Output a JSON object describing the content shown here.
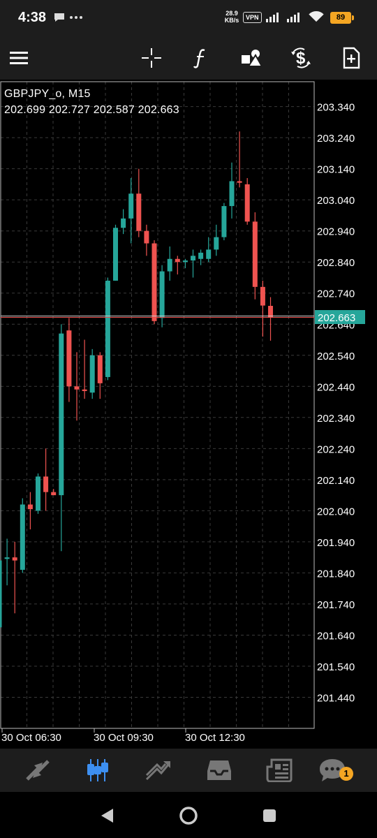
{
  "status_bar": {
    "time": "4:38",
    "left_icons": [
      "chat-bubble-icon",
      "more-dots-icon"
    ],
    "speed_value": "28.9",
    "speed_unit": "KB/s",
    "vpn": "VPN",
    "battery": "89"
  },
  "toolbar": {
    "items": [
      "menu-icon",
      "crosshair-icon",
      "function-icon",
      "objects-icon",
      "symbols-icon",
      "new-order-icon"
    ]
  },
  "chart": {
    "symbol_title": "GBPJPY_o, M15",
    "ohlc": "202.699 202.727 202.587 202.663",
    "current_price_label": "202.663",
    "colors": {
      "bull": "#26a69a",
      "bear": "#ef5350",
      "grid": "#3a3a3a",
      "border": "#bbbbbb",
      "price_tag": "#26a69a"
    }
  },
  "chart_data": {
    "type": "candlestick",
    "ylim": [
      201.34,
      203.42
    ],
    "y_ticks": [
      "203.340",
      "203.240",
      "203.140",
      "203.040",
      "202.940",
      "202.840",
      "202.740",
      "202.640",
      "202.540",
      "202.440",
      "202.340",
      "202.240",
      "202.140",
      "202.040",
      "201.940",
      "201.840",
      "201.740",
      "201.640",
      "201.540",
      "201.440"
    ],
    "x_labels": [
      "30 Oct 06:30",
      "30 Oct 09:30",
      "30 Oct 12:30"
    ],
    "current_price": 202.663,
    "candles": [
      {
        "o": 201.665,
        "h": 202.07,
        "l": 201.6,
        "c": 201.88
      },
      {
        "o": 201.885,
        "h": 201.95,
        "l": 201.8,
        "c": 201.89
      },
      {
        "o": 201.89,
        "h": 201.94,
        "l": 201.71,
        "c": 201.88
      },
      {
        "o": 201.85,
        "h": 202.08,
        "l": 201.84,
        "c": 202.06
      },
      {
        "o": 202.06,
        "h": 202.1,
        "l": 201.98,
        "c": 202.045
      },
      {
        "o": 202.04,
        "h": 202.16,
        "l": 202.03,
        "c": 202.15
      },
      {
        "o": 202.15,
        "h": 202.24,
        "l": 202.04,
        "c": 202.1
      },
      {
        "o": 202.1,
        "h": 202.11,
        "l": 202.09,
        "c": 202.09
      },
      {
        "o": 202.09,
        "h": 202.64,
        "l": 201.91,
        "c": 202.61
      },
      {
        "o": 202.62,
        "h": 202.66,
        "l": 202.39,
        "c": 202.44
      },
      {
        "o": 202.44,
        "h": 202.55,
        "l": 202.33,
        "c": 202.43
      },
      {
        "o": 202.43,
        "h": 202.59,
        "l": 202.4,
        "c": 202.425
      },
      {
        "o": 202.42,
        "h": 202.56,
        "l": 202.4,
        "c": 202.54
      },
      {
        "o": 202.54,
        "h": 202.55,
        "l": 202.4,
        "c": 202.45
      },
      {
        "o": 202.47,
        "h": 202.79,
        "l": 202.46,
        "c": 202.78
      },
      {
        "o": 202.78,
        "h": 202.96,
        "l": 202.78,
        "c": 202.95
      },
      {
        "o": 202.95,
        "h": 203.01,
        "l": 202.93,
        "c": 202.98
      },
      {
        "o": 202.98,
        "h": 203.11,
        "l": 202.9,
        "c": 203.06
      },
      {
        "o": 203.06,
        "h": 203.14,
        "l": 202.92,
        "c": 202.94
      },
      {
        "o": 202.94,
        "h": 202.96,
        "l": 202.86,
        "c": 202.9
      },
      {
        "o": 202.9,
        "h": 202.91,
        "l": 202.64,
        "c": 202.65
      },
      {
        "o": 202.66,
        "h": 202.83,
        "l": 202.63,
        "c": 202.81
      },
      {
        "o": 202.81,
        "h": 202.89,
        "l": 202.78,
        "c": 202.85
      },
      {
        "o": 202.85,
        "h": 202.86,
        "l": 202.8,
        "c": 202.84
      },
      {
        "o": 202.84,
        "h": 202.85,
        "l": 202.82,
        "c": 202.845
      },
      {
        "o": 202.845,
        "h": 202.88,
        "l": 202.79,
        "c": 202.86
      },
      {
        "o": 202.85,
        "h": 202.88,
        "l": 202.83,
        "c": 202.87
      },
      {
        "o": 202.85,
        "h": 202.92,
        "l": 202.84,
        "c": 202.88
      },
      {
        "o": 202.88,
        "h": 202.96,
        "l": 202.86,
        "c": 202.92
      },
      {
        "o": 202.92,
        "h": 203.03,
        "l": 202.91,
        "c": 203.02
      },
      {
        "o": 203.02,
        "h": 203.16,
        "l": 202.98,
        "c": 203.1
      },
      {
        "o": 203.1,
        "h": 203.26,
        "l": 203.08,
        "c": 203.095
      },
      {
        "o": 203.09,
        "h": 203.11,
        "l": 202.96,
        "c": 202.97
      },
      {
        "o": 202.97,
        "h": 203.0,
        "l": 202.72,
        "c": 202.76
      },
      {
        "o": 202.76,
        "h": 202.78,
        "l": 202.6,
        "c": 202.7
      },
      {
        "o": 202.699,
        "h": 202.727,
        "l": 202.587,
        "c": 202.663
      }
    ]
  },
  "bottom_nav": {
    "items": [
      "quotes-icon",
      "chart-icon",
      "trade-icon",
      "history-icon",
      "news-icon",
      "messages-icon"
    ],
    "active": "chart-icon",
    "badge": "1"
  },
  "android_nav": [
    "back-icon",
    "home-icon",
    "recents-icon"
  ]
}
